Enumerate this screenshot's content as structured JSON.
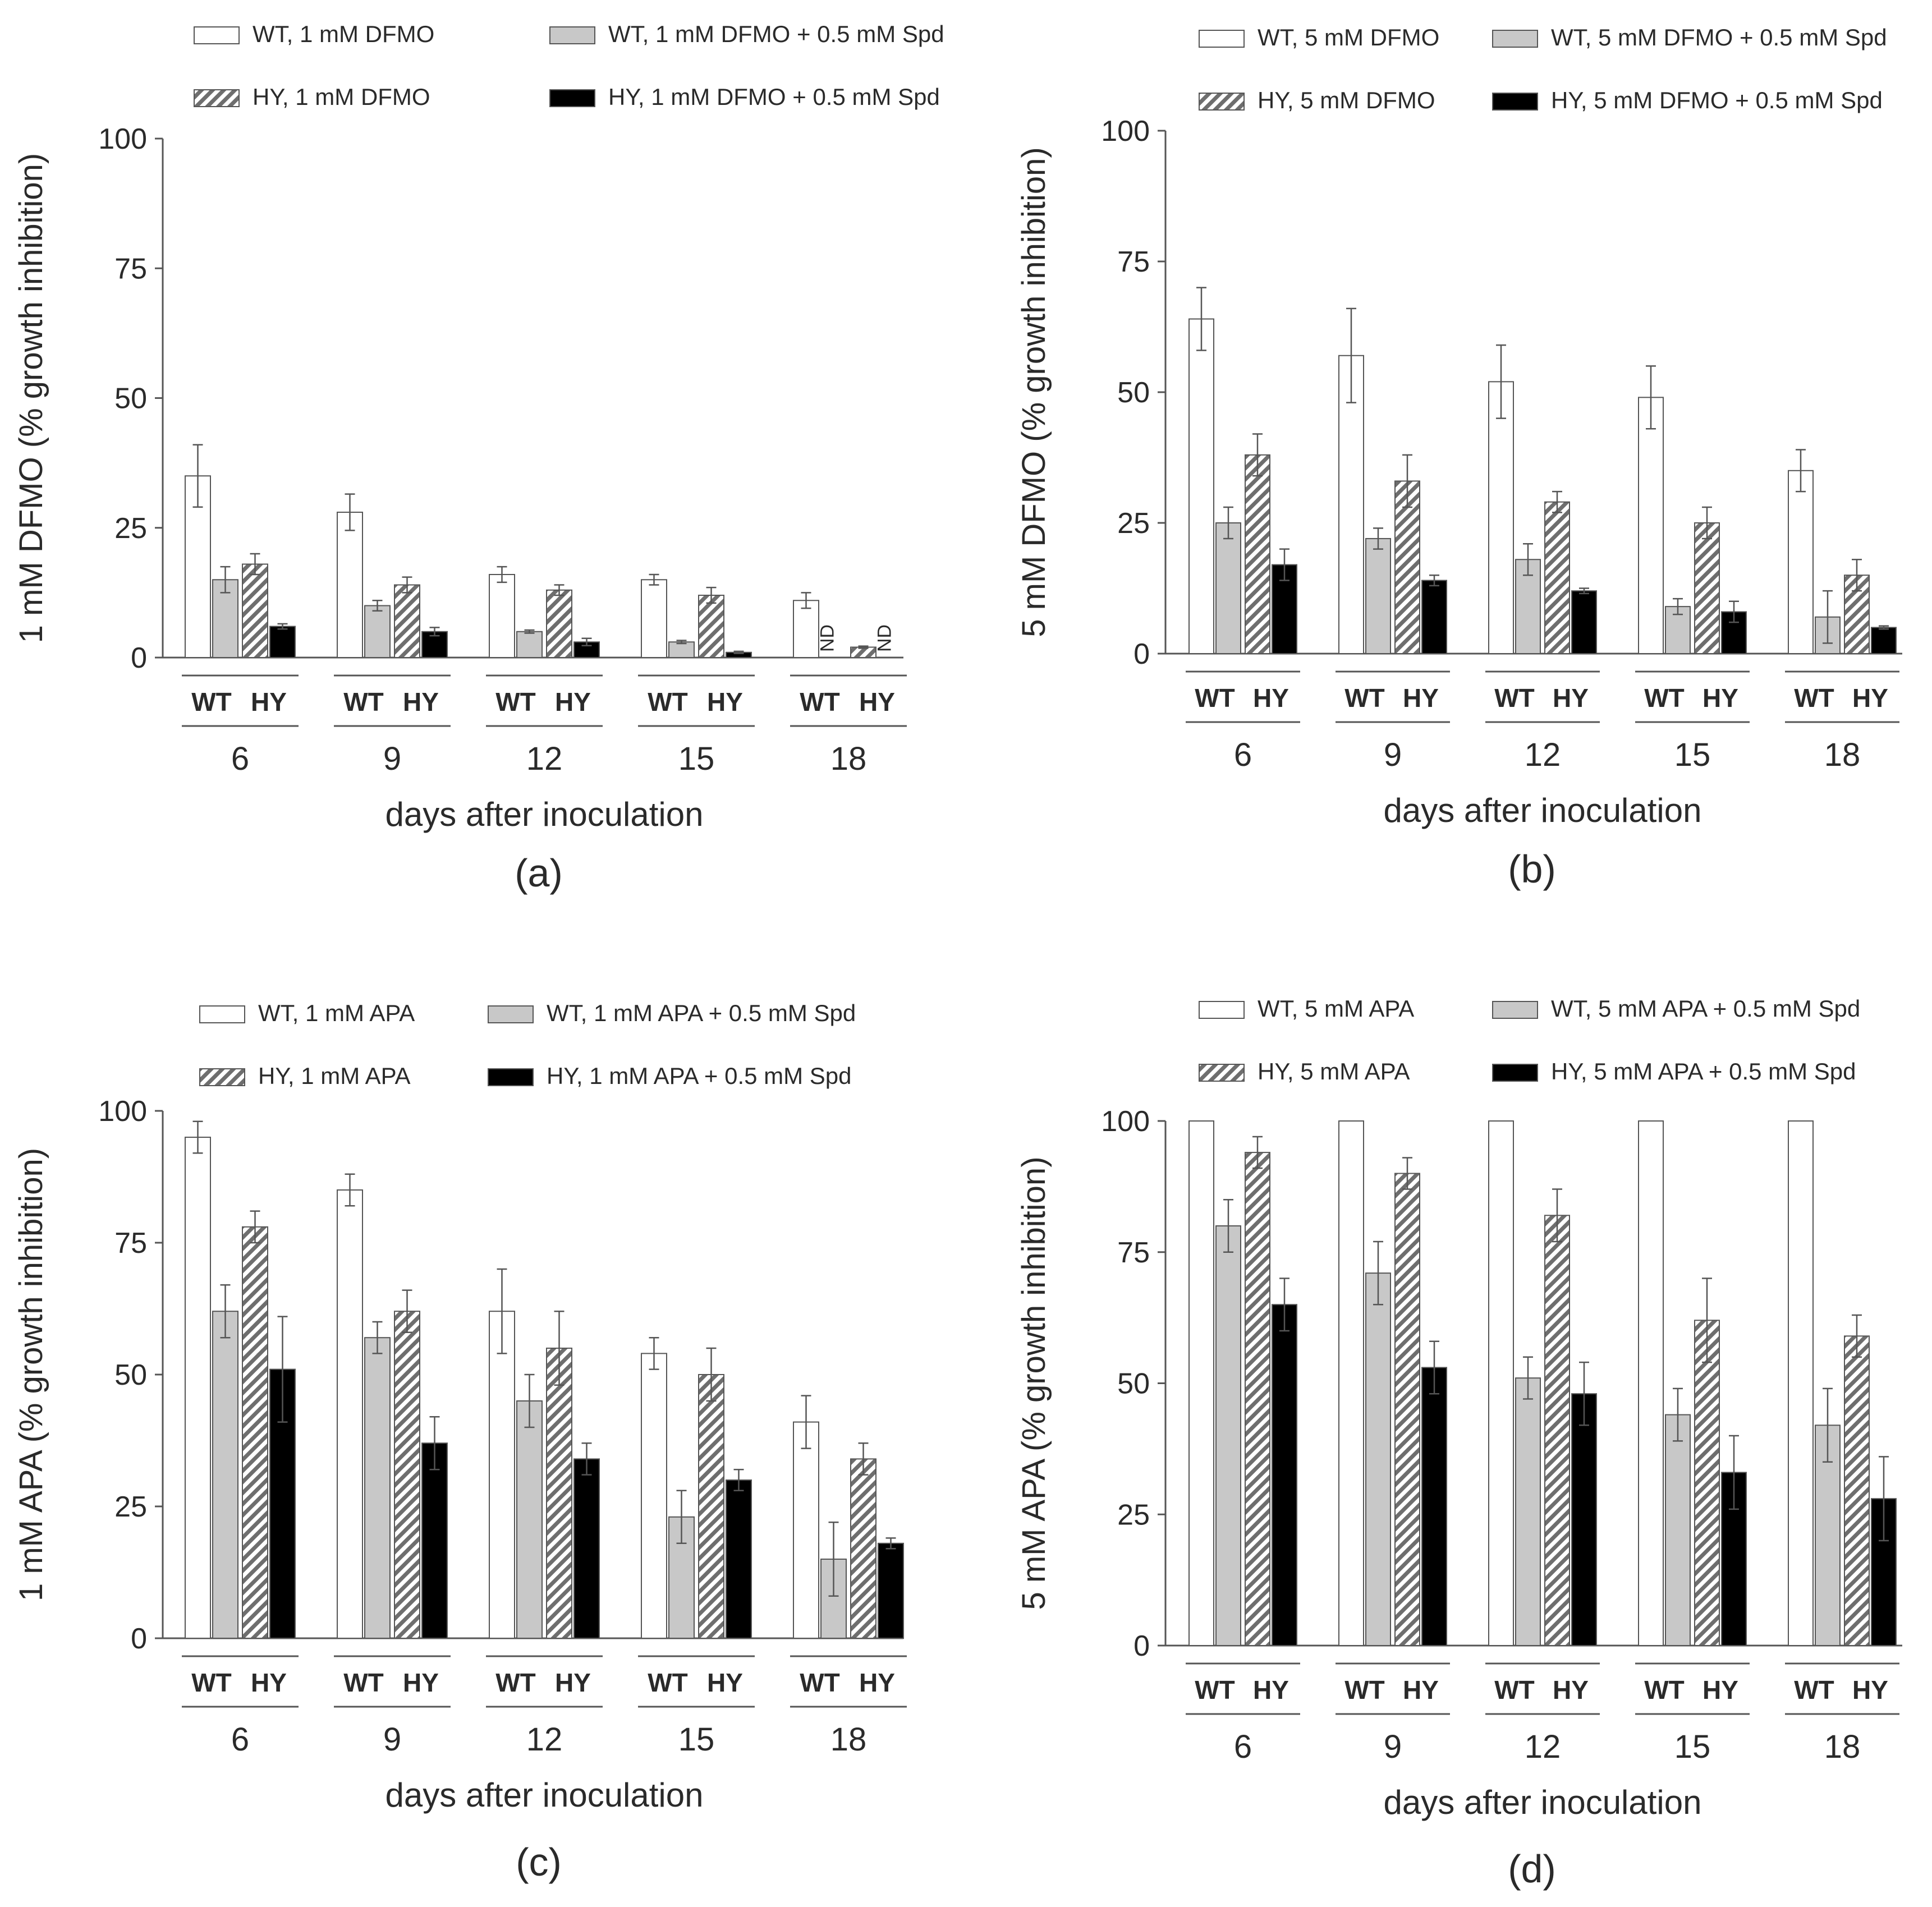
{
  "figure": {
    "colors": {
      "wt_drug": "#ffffff",
      "wt_spd": "#c8c8c8",
      "hy_drug_hatch": "#6e6e6e",
      "hy_spd": "#000000",
      "outline": "#555555"
    },
    "patterns": {
      "hy_drug": "diagonal-hatch"
    }
  },
  "chart_data": [
    {
      "panel_label": "(a)",
      "type": "bar",
      "ylabel": "1 mM DFMO (% growth inhibition)",
      "xlabel": "days after inoculation",
      "ylim": [
        0,
        100
      ],
      "yticks": [
        0,
        25,
        50,
        75,
        100
      ],
      "group_labels": [
        "WT",
        "HY"
      ],
      "categories": [
        "6",
        "9",
        "12",
        "15",
        "18"
      ],
      "legend_position": "top",
      "series": [
        {
          "name": "WT, 1 mM DFMO",
          "values": [
            35,
            28,
            16,
            15,
            11
          ],
          "errors": [
            6,
            3.5,
            1.5,
            1,
            1.5
          ]
        },
        {
          "name": "WT, 1 mM DFMO + 0.5 mM Spd",
          "values": [
            15,
            10,
            5,
            3,
            null
          ],
          "errors": [
            2.5,
            1,
            0.3,
            0.3,
            null
          ]
        },
        {
          "name": "HY, 1 mM DFMO",
          "values": [
            18,
            14,
            13,
            12,
            2
          ],
          "errors": [
            2,
            1.5,
            1,
            1.5,
            0.2
          ]
        },
        {
          "name": "HY, 1 mM DFMO + 0.5 mM Spd",
          "values": [
            6,
            5,
            3,
            1,
            null
          ],
          "errors": [
            0.5,
            0.8,
            0.7,
            0.2,
            null
          ]
        }
      ],
      "annotations": [
        {
          "text": "ND",
          "category": "18",
          "series": 1
        },
        {
          "text": "ND",
          "category": "18",
          "series": 3
        }
      ]
    },
    {
      "panel_label": "(b)",
      "type": "bar",
      "ylabel": "5 mM DFMO (% growth inhibition)",
      "xlabel": "days after inoculation",
      "ylim": [
        0,
        100
      ],
      "yticks": [
        0,
        25,
        50,
        75,
        100
      ],
      "group_labels": [
        "WT",
        "HY"
      ],
      "categories": [
        "6",
        "9",
        "12",
        "15",
        "18"
      ],
      "legend_position": "top",
      "series": [
        {
          "name": "WT, 5 mM DFMO",
          "values": [
            64,
            57,
            52,
            49,
            35
          ],
          "errors": [
            6,
            9,
            7,
            6,
            4
          ]
        },
        {
          "name": "WT, 5 mM DFMO + 0.5 mM Spd",
          "values": [
            25,
            22,
            18,
            9,
            7
          ],
          "errors": [
            3,
            2,
            3,
            1.5,
            5
          ]
        },
        {
          "name": "HY, 5 mM DFMO",
          "values": [
            38,
            33,
            29,
            25,
            15
          ],
          "errors": [
            4,
            5,
            2,
            3,
            3
          ]
        },
        {
          "name": "HY, 5 mM DFMO + 0.5 mM Spd",
          "values": [
            17,
            14,
            12,
            8,
            5
          ],
          "errors": [
            3,
            1,
            0.5,
            2,
            0.3
          ]
        }
      ],
      "annotations": []
    },
    {
      "panel_label": "(c)",
      "type": "bar",
      "ylabel": "1 mM APA (% growth inhibition)",
      "xlabel": "days after inoculation",
      "ylim": [
        0,
        100
      ],
      "yticks": [
        0,
        25,
        50,
        75,
        100
      ],
      "group_labels": [
        "WT",
        "HY"
      ],
      "categories": [
        "6",
        "9",
        "12",
        "15",
        "18"
      ],
      "legend_position": "top",
      "series": [
        {
          "name": "WT, 1 mM APA",
          "values": [
            95,
            85,
            62,
            54,
            41
          ],
          "errors": [
            3,
            3,
            8,
            3,
            5
          ]
        },
        {
          "name": "WT, 1 mM APA + 0.5 mM Spd",
          "values": [
            62,
            57,
            45,
            23,
            15
          ],
          "errors": [
            5,
            3,
            5,
            5,
            7
          ]
        },
        {
          "name": "HY, 1 mM APA",
          "values": [
            78,
            62,
            55,
            50,
            34
          ],
          "errors": [
            3,
            4,
            7,
            5,
            3
          ]
        },
        {
          "name": "HY, 1 mM APA + 0.5 mM Spd",
          "values": [
            51,
            37,
            34,
            30,
            18
          ],
          "errors": [
            10,
            5,
            3,
            2,
            1
          ]
        }
      ],
      "annotations": []
    },
    {
      "panel_label": "(d)",
      "type": "bar",
      "ylabel": "5 mM APA (% growth inhibition)",
      "xlabel": "days after inoculation",
      "ylim": [
        0,
        100
      ],
      "yticks": [
        0,
        25,
        50,
        75,
        100
      ],
      "group_labels": [
        "WT",
        "HY"
      ],
      "categories": [
        "6",
        "9",
        "12",
        "15",
        "18"
      ],
      "legend_position": "top",
      "series": [
        {
          "name": "WT, 5 mM APA",
          "values": [
            100,
            100,
            100,
            100,
            100
          ],
          "errors": [
            0,
            0,
            0,
            0,
            0
          ]
        },
        {
          "name": "WT, 5 mM APA + 0.5 mM Spd",
          "values": [
            80,
            71,
            51,
            44,
            42
          ],
          "errors": [
            5,
            6,
            4,
            5,
            7
          ]
        },
        {
          "name": "HY, 5 mM APA",
          "values": [
            94,
            90,
            82,
            62,
            59
          ],
          "errors": [
            3,
            3,
            5,
            8,
            4
          ]
        },
        {
          "name": "HY, 5 mM APA + 0.5 mM Spd",
          "values": [
            65,
            53,
            48,
            33,
            28
          ],
          "errors": [
            5,
            5,
            6,
            7,
            8
          ]
        }
      ],
      "annotations": []
    }
  ]
}
